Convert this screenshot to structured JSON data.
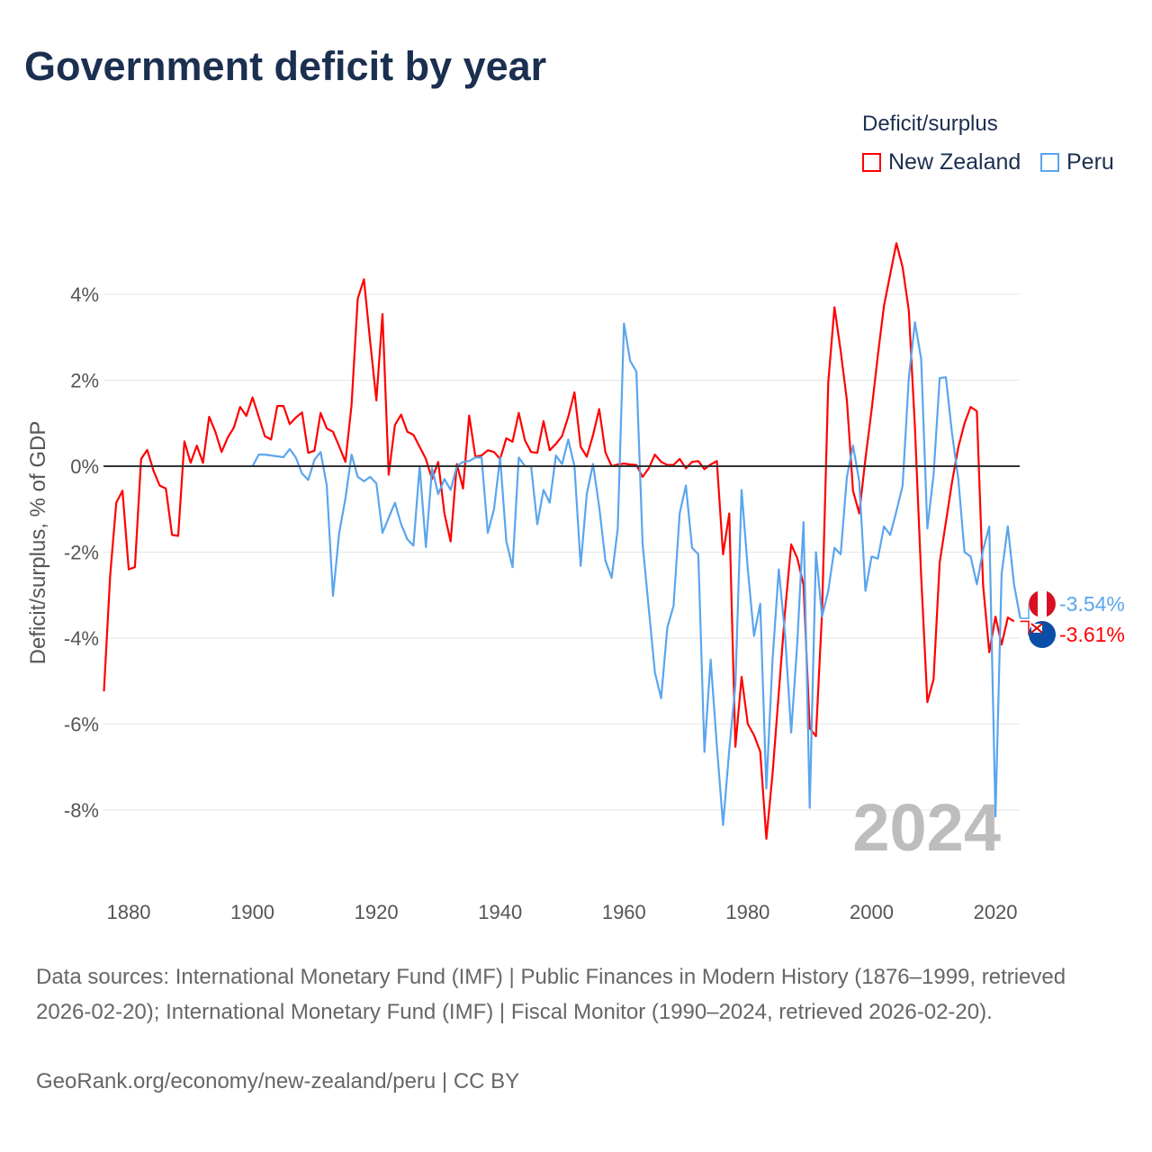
{
  "chart_data": {
    "type": "line",
    "title": "Government deficit by year",
    "ylabel": "Deficit/surplus, % of GDP",
    "xlabel": "",
    "ylim": [
      -9.5,
      5.5
    ],
    "xlim": [
      1876,
      2024
    ],
    "yticks": [
      4,
      2,
      0,
      -2,
      -4,
      -6,
      -8
    ],
    "ytick_labels": [
      "4%",
      "2%",
      "0%",
      "-2%",
      "-4%",
      "-6%",
      "-8%"
    ],
    "xticks": [
      1880,
      1900,
      1920,
      1940,
      1960,
      1980,
      2000,
      2020
    ],
    "xtick_labels": [
      "1880",
      "1900",
      "1920",
      "1940",
      "1960",
      "1980",
      "2000",
      "2020"
    ],
    "grid": true,
    "legend_title": "Deficit/surplus",
    "legend_position": "top-right",
    "year_label": "2024",
    "series": [
      {
        "name": "New Zealand",
        "color": "#ff0000",
        "start_year": 1876,
        "end_label": "-3.61%",
        "values": [
          -5.24,
          -2.55,
          -0.85,
          -0.57,
          -2.4,
          -2.35,
          0.17,
          0.38,
          -0.1,
          -0.45,
          -0.52,
          -1.6,
          -1.62,
          0.58,
          0.08,
          0.48,
          0.08,
          1.15,
          0.8,
          0.33,
          0.67,
          0.9,
          1.38,
          1.17,
          1.6,
          1.15,
          0.7,
          0.62,
          1.4,
          1.4,
          0.98,
          1.13,
          1.25,
          0.31,
          0.36,
          1.24,
          0.88,
          0.8,
          0.46,
          0.1,
          1.42,
          3.9,
          4.35,
          2.9,
          1.53,
          3.54,
          -0.2,
          0.96,
          1.2,
          0.8,
          0.73,
          0.45,
          0.17,
          -0.3,
          0.1,
          -1.1,
          -1.75,
          0.05,
          -0.52,
          1.18,
          0.22,
          0.25,
          0.37,
          0.33,
          0.17,
          0.65,
          0.57,
          1.24,
          0.6,
          0.33,
          0.31,
          1.05,
          0.37,
          0.52,
          0.7,
          1.15,
          1.72,
          0.45,
          0.22,
          0.72,
          1.33,
          0.32,
          0.0,
          0.04,
          0.06,
          0.04,
          0.03,
          -0.25,
          -0.05,
          0.27,
          0.1,
          0.03,
          0.03,
          0.17,
          -0.05,
          0.1,
          0.12,
          -0.07,
          0.04,
          0.12,
          -2.05,
          -1.1,
          -6.53,
          -4.9,
          -6.0,
          -6.26,
          -6.64,
          -8.67,
          -7.16,
          -5.28,
          -3.4,
          -1.82,
          -2.14,
          -2.76,
          -6.1,
          -6.28,
          -3.4,
          1.95,
          3.7,
          2.68,
          1.53,
          -0.57,
          -1.1,
          0.17,
          1.32,
          2.58,
          3.73,
          4.46,
          5.19,
          4.63,
          3.62,
          0.9,
          -2.55,
          -5.49,
          -4.96,
          -2.24,
          -1.3,
          -0.36,
          0.44,
          1.0,
          1.38,
          1.28,
          -2.76,
          -4.33,
          -3.5,
          -4.15,
          -3.52,
          -3.61
        ]
      },
      {
        "name": "Peru",
        "color": "#5aa5ee",
        "start_year": 1900,
        "end_label": "-3.54%",
        "values": [
          0.0,
          0.27,
          0.27,
          0.25,
          0.23,
          0.21,
          0.4,
          0.2,
          -0.17,
          -0.32,
          0.15,
          0.33,
          -0.45,
          -3.02,
          -1.55,
          -0.75,
          0.27,
          -0.25,
          -0.35,
          -0.25,
          -0.4,
          -1.55,
          -1.2,
          -0.85,
          -1.35,
          -1.7,
          -1.85,
          0.0,
          -1.88,
          -0.05,
          -0.65,
          -0.3,
          -0.55,
          0.0,
          0.1,
          0.12,
          0.2,
          0.2,
          -1.55,
          -1.0,
          0.2,
          -1.75,
          -2.35,
          0.2,
          0.0,
          0.0,
          -1.35,
          -0.55,
          -0.85,
          0.25,
          0.05,
          0.62,
          0.0,
          -2.32,
          -0.65,
          0.05,
          -0.95,
          -2.2,
          -2.6,
          -1.45,
          3.32,
          2.45,
          2.2,
          -1.8,
          -3.3,
          -4.8,
          -5.4,
          -3.75,
          -3.25,
          -1.1,
          -0.45,
          -1.9,
          -2.05,
          -6.65,
          -4.5,
          -6.5,
          -8.35,
          -6.6,
          -5.1,
          -0.55,
          -2.4,
          -3.95,
          -3.2,
          -7.5,
          -4.5,
          -2.4,
          -3.9,
          -6.2,
          -4.1,
          -1.3,
          -7.95,
          -2.0,
          -3.5,
          -2.9,
          -1.9,
          -2.05,
          -0.25,
          0.48,
          -0.35,
          -2.9,
          -2.1,
          -2.15,
          -1.4,
          -1.6,
          -1.05,
          -0.45,
          2.05,
          3.35,
          2.5,
          -1.45,
          -0.2,
          2.05,
          2.07,
          0.75,
          -0.3,
          -2.0,
          -2.1,
          -2.75,
          -1.95,
          -1.4,
          -8.15,
          -2.5,
          -1.4,
          -2.75,
          -3.54
        ]
      }
    ]
  },
  "footer": {
    "sources": "Data sources: International Monetary Fund (IMF) | Public Finances in Modern History (1876–1999, retrieved 2026-02-20); International Monetary Fund (IMF) | Fiscal Monitor (1990–2024, retrieved 2026-02-20).",
    "attribution": "GeoRank.org/economy/new-zealand/peru | CC BY"
  }
}
